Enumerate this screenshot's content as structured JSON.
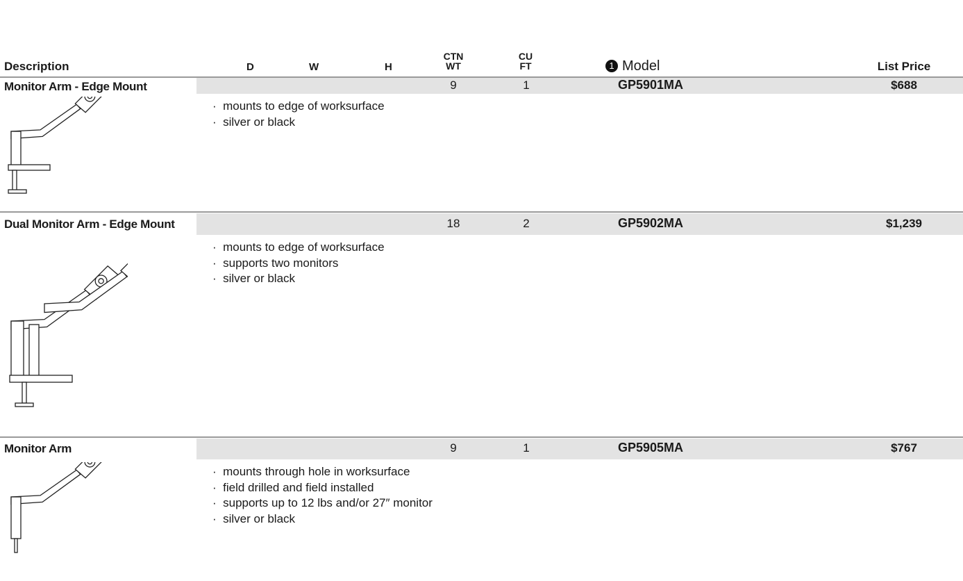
{
  "header": {
    "description": "Description",
    "d": "D",
    "w": "W",
    "h": "H",
    "ctn_wt": [
      "CTN",
      "WT"
    ],
    "cu_ft": [
      "CU",
      "FT"
    ],
    "model_note": "1",
    "model": "Model",
    "list_price": "List Price"
  },
  "products": [
    {
      "name": "Monitor Arm - Edge Mount",
      "ctn_wt": 9,
      "cu_ft": 1,
      "model": "GP5901MA",
      "price": "$688",
      "features": [
        "mounts to edge of worksurface",
        "silver or black"
      ]
    },
    {
      "name": "Dual Monitor Arm - Edge Mount",
      "ctn_wt": 18,
      "cu_ft": 2,
      "model": "GP5902MA",
      "price": "$1,239",
      "features": [
        "mounts to edge of worksurface",
        "supports two monitors",
        "silver or black"
      ]
    },
    {
      "name": "Monitor Arm",
      "ctn_wt": 9,
      "cu_ft": 1,
      "model": "GP5905MA",
      "price": "$767",
      "features": [
        "mounts through hole in worksurface",
        "field drilled and field installed",
        "supports up to 12 lbs and/or 27″ monitor",
        "silver or black"
      ]
    }
  ]
}
